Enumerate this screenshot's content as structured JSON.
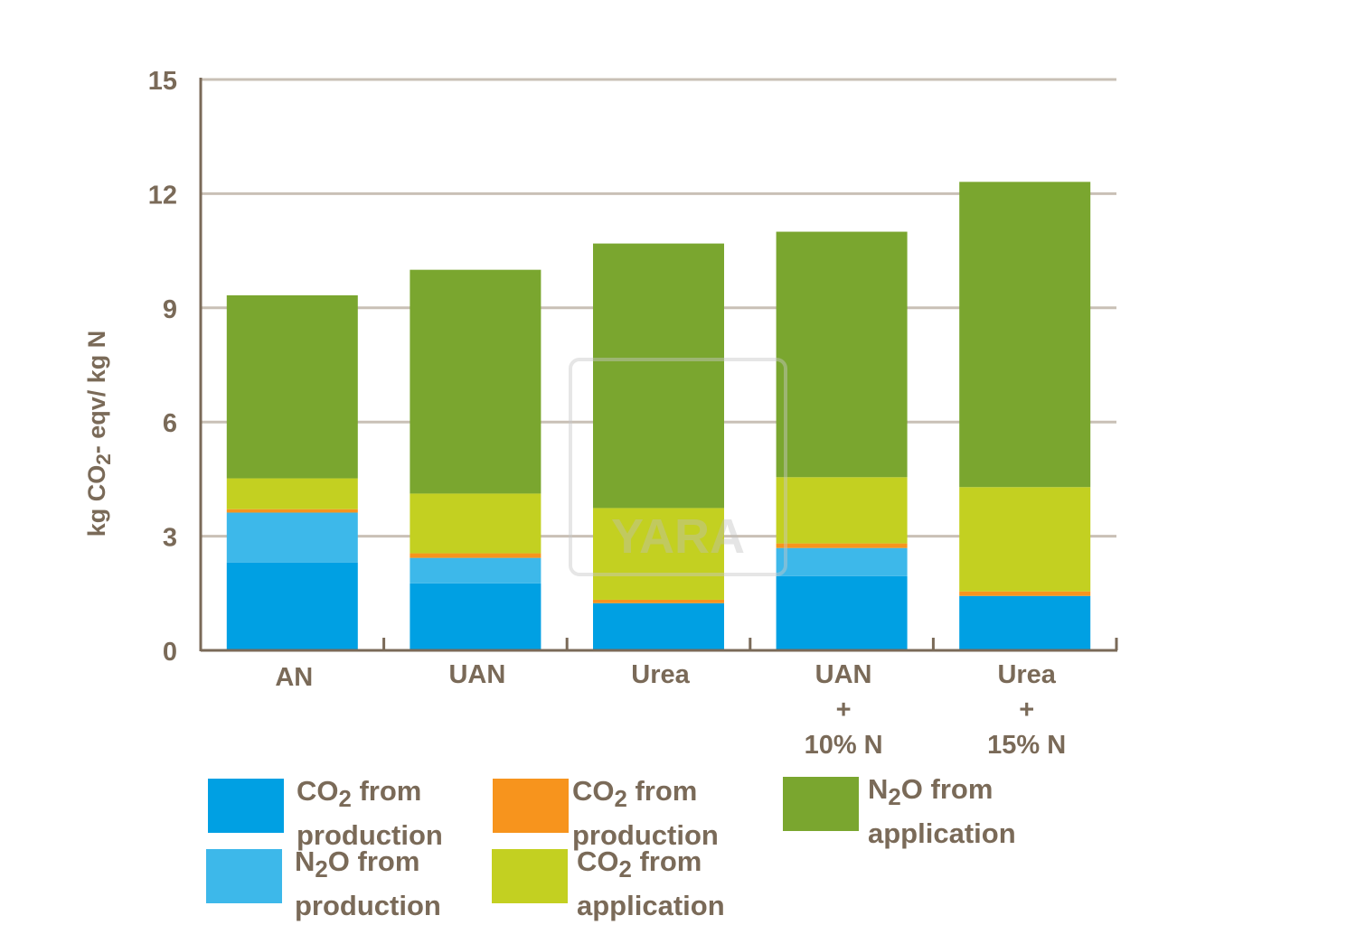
{
  "chart_data": {
    "type": "bar",
    "stacked": true,
    "categories": [
      "AN",
      "UAN",
      "Urea",
      "UAN\n+\n10% N",
      "Urea\n+\n15% N"
    ],
    "category_lines": [
      [
        "AN"
      ],
      [
        "UAN"
      ],
      [
        "Urea"
      ],
      [
        "UAN",
        "+",
        "10% N"
      ],
      [
        "Urea",
        "+",
        "15% N"
      ]
    ],
    "ylabel": "kg CO2- eqv/ kg N",
    "ylim": [
      0,
      15
    ],
    "yticks": [
      0,
      3,
      6,
      9,
      12,
      15
    ],
    "grid": true,
    "legend_position": "bottom",
    "series": [
      {
        "name": "CO2 from production",
        "color": "#00a0e3",
        "values": [
          2.31,
          1.76,
          1.24,
          1.95,
          1.43
        ]
      },
      {
        "name": "N2O from production",
        "color": "#3db8ea",
        "values": [
          1.31,
          0.67,
          0.0,
          0.74,
          0.0
        ]
      },
      {
        "name": "CO2 from production",
        "color": "#f7941d",
        "values": [
          0.09,
          0.12,
          0.09,
          0.12,
          0.12
        ]
      },
      {
        "name": "CO2 from application",
        "color": "#c3d021",
        "values": [
          0.81,
          1.57,
          2.41,
          1.74,
          2.74
        ]
      },
      {
        "name": "N2O from application",
        "color": "#7aa62f",
        "values": [
          4.81,
          5.88,
          6.95,
          6.45,
          8.02
        ]
      }
    ]
  },
  "legend": [
    {
      "pre": "CO",
      "sub": "2",
      "post": " from",
      "line2": "production",
      "color": "#00a0e3"
    },
    {
      "pre": "CO",
      "sub": "2",
      "post": " from",
      "line2": " production",
      "color": "#f7941d"
    },
    {
      "pre": "N",
      "sub": "2",
      "post": "O from",
      "line2": "application",
      "color": "#7aa62f"
    },
    {
      "pre": "N",
      "sub": "2",
      "post": "O from",
      "line2": "production",
      "color": "#3db8ea"
    },
    {
      "pre": "CO",
      "sub": "2",
      "post": " from",
      "line2": "application",
      "color": "#c3d021"
    }
  ],
  "ylabel_parts": {
    "pre": "kg CO",
    "sub": "2",
    "post": "- eqv/ kg N"
  },
  "watermark": "YARA",
  "colors": {
    "axis": "#7a6a58",
    "grid": "#c9c0b6"
  }
}
